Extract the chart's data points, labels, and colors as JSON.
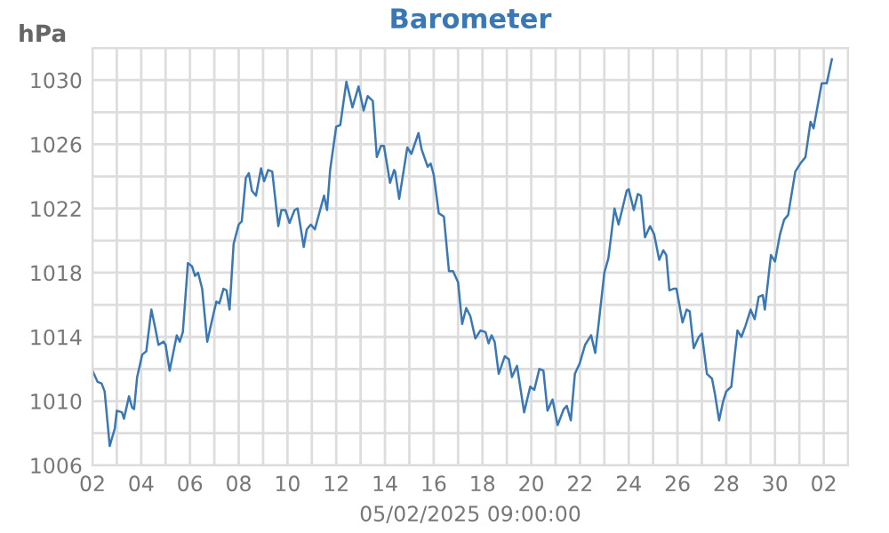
{
  "chart_data": {
    "type": "line",
    "title": "Barometer",
    "ylabel": "hPa",
    "xlabel": "05/02/2025 09:00:00",
    "xlim": [
      "2025-04-02",
      "2025-05-03"
    ],
    "ylim": [
      1006,
      1032
    ],
    "xticks": [
      {
        "value": "2025-04-02",
        "label": "02"
      },
      {
        "value": "2025-04-03",
        "label": null
      },
      {
        "value": "2025-04-04",
        "label": "04"
      },
      {
        "value": "2025-04-05",
        "label": null
      },
      {
        "value": "2025-04-06",
        "label": "06"
      },
      {
        "value": "2025-04-07",
        "label": null
      },
      {
        "value": "2025-04-08",
        "label": "08"
      },
      {
        "value": "2025-04-09",
        "label": null
      },
      {
        "value": "2025-04-10",
        "label": "10"
      },
      {
        "value": "2025-04-11",
        "label": null
      },
      {
        "value": "2025-04-12",
        "label": "12"
      },
      {
        "value": "2025-04-13",
        "label": null
      },
      {
        "value": "2025-04-14",
        "label": "14"
      },
      {
        "value": "2025-04-15",
        "label": null
      },
      {
        "value": "2025-04-16",
        "label": "16"
      },
      {
        "value": "2025-04-17",
        "label": null
      },
      {
        "value": "2025-04-18",
        "label": "18"
      },
      {
        "value": "2025-04-19",
        "label": null
      },
      {
        "value": "2025-04-20",
        "label": "20"
      },
      {
        "value": "2025-04-21",
        "label": null
      },
      {
        "value": "2025-04-22",
        "label": "22"
      },
      {
        "value": "2025-04-23",
        "label": null
      },
      {
        "value": "2025-04-24",
        "label": "24"
      },
      {
        "value": "2025-04-25",
        "label": null
      },
      {
        "value": "2025-04-26",
        "label": "26"
      },
      {
        "value": "2025-04-27",
        "label": null
      },
      {
        "value": "2025-04-28",
        "label": "28"
      },
      {
        "value": "2025-04-29",
        "label": null
      },
      {
        "value": "2025-04-30",
        "label": "30"
      },
      {
        "value": "2025-05-01",
        "label": null
      },
      {
        "value": "2025-05-02",
        "label": "02"
      },
      {
        "value": "2025-05-03",
        "label": null
      }
    ],
    "yticks": [
      1006,
      {
        "value": 1008,
        "label": null
      },
      1010,
      {
        "value": 1012,
        "label": null
      },
      1014,
      {
        "value": 1016,
        "label": null
      },
      1018,
      {
        "value": 1020,
        "label": null
      },
      1022,
      {
        "value": 1024,
        "label": null
      },
      1026,
      {
        "value": 1028,
        "label": null
      },
      1030,
      {
        "value": 1032,
        "label": null
      }
    ],
    "grid": true,
    "marker": "none",
    "line_style": "solid",
    "series": [
      {
        "color": "#3a78b5",
        "x": [
          "2025-04-02T00:00",
          "2025-04-02T05:00",
          "2025-04-02T09:00",
          "2025-04-02T12:00",
          "2025-04-02T17:00",
          "2025-04-02T22:00",
          "2025-04-03T00:00",
          "2025-04-03T05:00",
          "2025-04-03T07:00",
          "2025-04-03T12:00",
          "2025-04-03T15:00",
          "2025-04-03T17:00",
          "2025-04-03T20:00",
          "2025-04-04T01:00",
          "2025-04-04T05:00",
          "2025-04-04T10:00",
          "2025-04-04T14:00",
          "2025-04-04T17:00",
          "2025-04-04T22:00",
          "2025-04-05T00:00",
          "2025-04-05T04:00",
          "2025-04-05T11:00",
          "2025-04-05T14:00",
          "2025-04-05T17:00",
          "2025-04-05T22:00",
          "2025-04-06T02:00",
          "2025-04-06T05:00",
          "2025-04-06T08:00",
          "2025-04-06T12:00",
          "2025-04-06T17:00",
          "2025-04-06T23:00",
          "2025-04-07T02:00",
          "2025-04-07T05:00",
          "2025-04-07T09:00",
          "2025-04-07T12:00",
          "2025-04-07T15:00",
          "2025-04-07T19:00",
          "2025-04-08T00:00",
          "2025-04-08T03:00",
          "2025-04-08T07:00",
          "2025-04-08T10:00",
          "2025-04-08T13:00",
          "2025-04-08T17:00",
          "2025-04-08T22:00",
          "2025-04-09T01:00",
          "2025-04-09T05:00",
          "2025-04-09T09:00",
          "2025-04-09T15:00",
          "2025-04-09T18:00",
          "2025-04-09T22:00",
          "2025-04-10T02:00",
          "2025-04-10T07:00",
          "2025-04-10T10:00",
          "2025-04-10T16:00",
          "2025-04-10T19:00",
          "2025-04-10T23:00",
          "2025-04-11T03:00",
          "2025-04-11T09:00",
          "2025-04-11T12:00",
          "2025-04-11T15:00",
          "2025-04-11T18:00",
          "2025-04-12T00:00",
          "2025-04-12T04:00",
          "2025-04-12T10:00",
          "2025-04-12T16:00",
          "2025-04-12T22:00",
          "2025-04-13T03:00",
          "2025-04-13T07:00",
          "2025-04-13T12:00",
          "2025-04-13T16:00",
          "2025-04-13T20:00",
          "2025-04-13T23:00",
          "2025-04-14T05:00",
          "2025-04-14T09:00",
          "2025-04-14T10:00",
          "2025-04-14T14:00",
          "2025-04-14T22:00",
          "2025-04-15T02:00",
          "2025-04-15T09:00",
          "2025-04-15T12:00",
          "2025-04-15T18:00",
          "2025-04-15T21:00",
          "2025-04-16T00:00",
          "2025-04-16T05:00",
          "2025-04-16T10:00",
          "2025-04-16T15:00",
          "2025-04-16T19:00",
          "2025-04-17T00:00",
          "2025-04-17T04:00",
          "2025-04-17T08:00",
          "2025-04-17T12:00",
          "2025-04-17T17:00",
          "2025-04-17T22:00",
          "2025-04-18T03:00",
          "2025-04-18T06:00",
          "2025-04-18T09:00",
          "2025-04-18T12:00",
          "2025-04-18T16:00",
          "2025-04-18T22:00",
          "2025-04-19T02:00",
          "2025-04-19T05:00",
          "2025-04-19T10:00",
          "2025-04-19T17:00",
          "2025-04-19T23:00",
          "2025-04-20T03:00",
          "2025-04-20T08:00",
          "2025-04-20T12:00",
          "2025-04-20T16:00",
          "2025-04-20T21:00",
          "2025-04-21T02:00",
          "2025-04-21T08:00",
          "2025-04-21T11:00",
          "2025-04-21T15:00",
          "2025-04-21T19:00",
          "2025-04-22T00:00",
          "2025-04-22T05:00",
          "2025-04-22T11:00",
          "2025-04-22T15:00",
          "2025-04-22T18:00",
          "2025-04-23T00:00",
          "2025-04-23T04:00",
          "2025-04-23T10:00",
          "2025-04-23T14:00",
          "2025-04-23T22:00",
          "2025-04-24T00:00",
          "2025-04-24T05:00",
          "2025-04-24T09:00",
          "2025-04-24T12:00",
          "2025-04-24T16:00",
          "2025-04-24T21:00",
          "2025-04-25T01:00",
          "2025-04-25T06:00",
          "2025-04-25T10:00",
          "2025-04-25T13:00",
          "2025-04-25T16:00",
          "2025-04-25T20:00",
          "2025-04-25T23:00",
          "2025-04-26T05:00",
          "2025-04-26T09:00",
          "2025-04-26T12:00",
          "2025-04-26T16:00",
          "2025-04-26T21:00",
          "2025-04-27T00:00",
          "2025-04-27T05:00",
          "2025-04-27T10:00",
          "2025-04-27T13:00",
          "2025-04-27T17:00",
          "2025-04-27T21:00",
          "2025-04-28T00:00",
          "2025-04-28T05:00",
          "2025-04-28T11:00",
          "2025-04-28T15:00",
          "2025-04-28T19:00",
          "2025-04-29T00:00",
          "2025-04-29T04:00",
          "2025-04-29T08:00",
          "2025-04-29T12:00",
          "2025-04-29T14:00",
          "2025-04-29T20:00",
          "2025-04-30T00:00",
          "2025-04-30T05:00",
          "2025-04-30T09:00",
          "2025-04-30T13:00",
          "2025-04-30T20:00",
          "2025-05-01T01:00",
          "2025-05-01T06:00",
          "2025-05-01T11:00",
          "2025-05-01T14:00",
          "2025-05-01T22:00",
          "2025-05-02T03:00",
          "2025-05-02T08:00"
        ],
        "values": [
          1011.9,
          1011.2,
          1011.1,
          1010.6,
          1007.2,
          1008.3,
          1009.4,
          1009.3,
          1008.9,
          1010.3,
          1009.6,
          1009.5,
          1011.5,
          1012.9,
          1013.1,
          1015.7,
          1014.5,
          1013.5,
          1013.7,
          1013.5,
          1011.9,
          1014.1,
          1013.7,
          1014.3,
          1018.6,
          1018.4,
          1017.8,
          1018.0,
          1017.0,
          1013.7,
          1015.4,
          1016.2,
          1016.1,
          1017.0,
          1016.9,
          1015.7,
          1019.8,
          1021.0,
          1021.2,
          1023.9,
          1024.2,
          1023.1,
          1022.8,
          1024.5,
          1023.7,
          1024.4,
          1024.3,
          1020.9,
          1021.9,
          1021.9,
          1021.1,
          1021.9,
          1022.0,
          1019.6,
          1020.7,
          1021.0,
          1020.7,
          1022.1,
          1022.8,
          1021.9,
          1024.4,
          1027.1,
          1027.2,
          1029.9,
          1028.3,
          1029.6,
          1028.1,
          1029.0,
          1028.7,
          1025.2,
          1025.9,
          1025.9,
          1023.6,
          1024.4,
          1024.3,
          1022.6,
          1025.8,
          1025.4,
          1026.7,
          1025.7,
          1024.6,
          1024.8,
          1024.1,
          1021.7,
          1021.5,
          1018.1,
          1018.1,
          1017.4,
          1014.8,
          1015.8,
          1015.3,
          1013.9,
          1014.4,
          1014.3,
          1013.6,
          1014.1,
          1013.7,
          1011.7,
          1012.8,
          1012.6,
          1011.5,
          1012.2,
          1009.3,
          1010.9,
          1010.7,
          1012.0,
          1011.9,
          1009.4,
          1010.1,
          1008.5,
          1009.5,
          1009.7,
          1008.8,
          1011.7,
          1012.4,
          1013.5,
          1014.1,
          1013.0,
          1014.6,
          1018.0,
          1018.9,
          1022.0,
          1021.0,
          1023.1,
          1023.2,
          1021.9,
          1022.9,
          1022.8,
          1020.2,
          1020.9,
          1020.4,
          1018.8,
          1019.4,
          1019.1,
          1016.9,
          1017.0,
          1017.0,
          1014.9,
          1015.7,
          1015.6,
          1013.3,
          1014.0,
          1014.2,
          1011.7,
          1011.4,
          1010.4,
          1008.8,
          1010.0,
          1010.6,
          1010.9,
          1014.4,
          1014.0,
          1014.7,
          1015.7,
          1015.1,
          1016.5,
          1016.6,
          1015.7,
          1019.1,
          1018.7,
          1020.4,
          1021.3,
          1021.6,
          1024.3,
          1024.8,
          1025.2,
          1027.4,
          1027.0,
          1029.8,
          1029.8,
          1031.3
        ]
      }
    ]
  }
}
